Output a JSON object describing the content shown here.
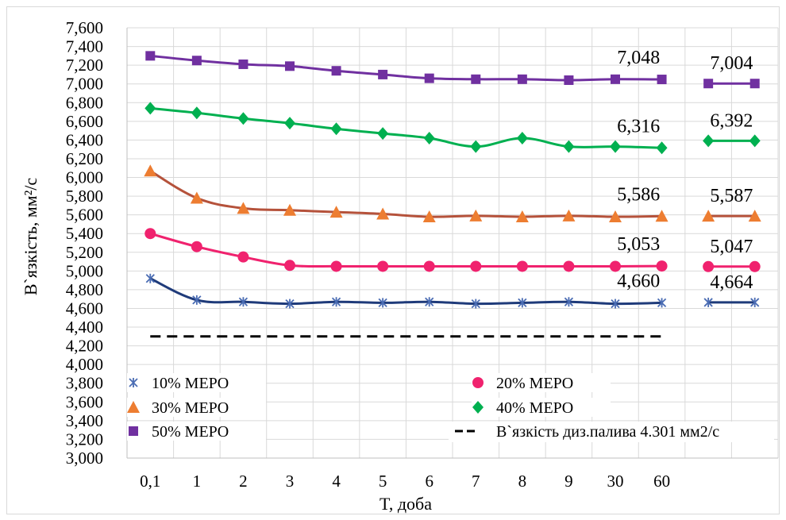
{
  "chart_data": {
    "type": "line",
    "xlabel": "T, доба",
    "ylabel": "В`язкість, мм²/с",
    "ylim": [
      3.0,
      7.6
    ],
    "ytick_step": 0.2,
    "categories": [
      "0,1",
      "1",
      "2",
      "3",
      "4",
      "5",
      "6",
      "7",
      "8",
      "9",
      "30",
      "60",
      "",
      ""
    ],
    "grid": true,
    "legend_placement": "bottom-left inside plot",
    "series": [
      {
        "name": "10% MEPO",
        "color": "#1f3b7a",
        "marker": "asterisk",
        "marker_color": "#4a6cb3",
        "values": [
          4.92,
          4.69,
          4.67,
          4.65,
          4.67,
          4.66,
          4.67,
          4.65,
          4.66,
          4.67,
          4.65,
          4.66,
          4.664,
          4.664
        ],
        "end_labels": [
          "4,660",
          "4,664"
        ]
      },
      {
        "name": "20% MEPO",
        "color": "#f0226e",
        "marker": "circle",
        "marker_color": "#f0226e",
        "values": [
          5.4,
          5.26,
          5.15,
          5.06,
          5.05,
          5.05,
          5.05,
          5.05,
          5.05,
          5.05,
          5.05,
          5.053,
          5.047,
          5.047
        ],
        "end_labels": [
          "5,053",
          "5,047"
        ]
      },
      {
        "name": "30% MEPO",
        "color": "#b5523b",
        "marker": "triangle",
        "marker_color": "#ed7d31",
        "values": [
          6.07,
          5.78,
          5.67,
          5.65,
          5.63,
          5.61,
          5.58,
          5.59,
          5.58,
          5.59,
          5.58,
          5.586,
          5.587,
          5.587
        ],
        "end_labels": [
          "5,586",
          "5,587"
        ]
      },
      {
        "name": "40% MEPO",
        "color": "#00b050",
        "marker": "diamond",
        "marker_color": "#00b050",
        "values": [
          6.74,
          6.69,
          6.63,
          6.58,
          6.52,
          6.47,
          6.42,
          6.33,
          6.42,
          6.33,
          6.33,
          6.316,
          6.392,
          6.392
        ],
        "end_labels": [
          "6,316",
          "6,392"
        ]
      },
      {
        "name": "50% MEPO",
        "color": "#7030a0",
        "marker": "square",
        "marker_color": "#7030a0",
        "values": [
          7.3,
          7.25,
          7.21,
          7.19,
          7.14,
          7.1,
          7.06,
          7.05,
          7.05,
          7.04,
          7.05,
          7.048,
          7.004,
          7.004
        ],
        "end_labels": [
          "7,048",
          "7,004"
        ]
      }
    ],
    "reference_line": {
      "name": "В`язкість диз.палива 4.301 мм2/с",
      "value": 4.301,
      "style": "dashed",
      "color": "#000000"
    }
  }
}
